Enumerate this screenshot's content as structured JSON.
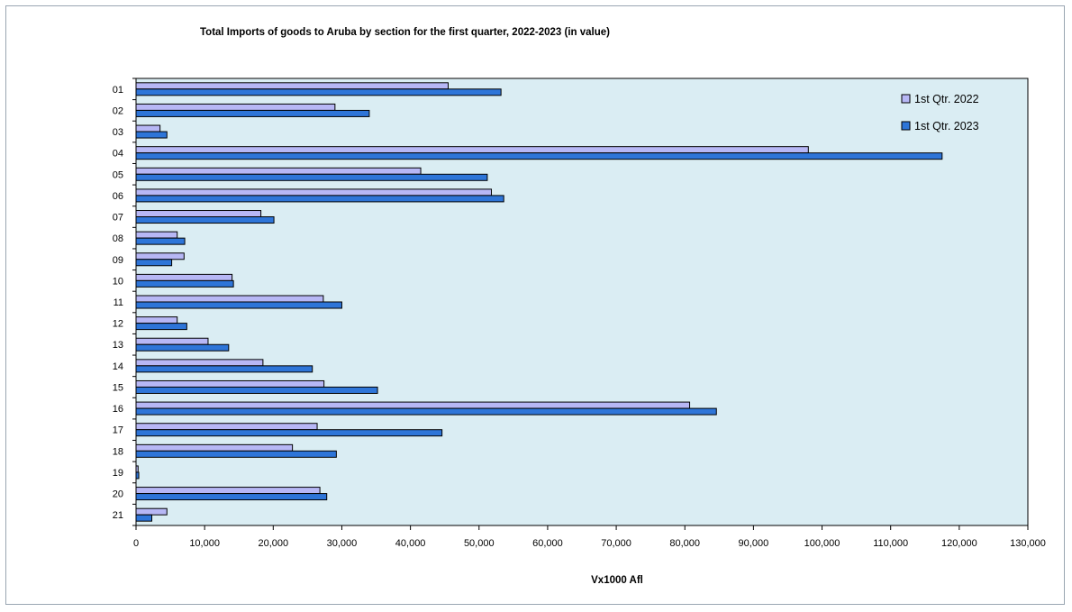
{
  "chart_data": {
    "type": "bar",
    "orientation": "horizontal",
    "title": "Total Imports of goods to Aruba by section for the first quarter, 2022-2023 (in value)",
    "xlabel": "Vx1000 Afl",
    "ylabel": "",
    "categories": [
      "01",
      "02",
      "03",
      "04",
      "05",
      "06",
      "07",
      "08",
      "09",
      "10",
      "11",
      "12",
      "13",
      "14",
      "15",
      "16",
      "17",
      "18",
      "19",
      "20",
      "21"
    ],
    "series": [
      {
        "name": "1st Qtr. 2022",
        "color": "#b7b7f5",
        "values": [
          45500,
          29000,
          3500,
          98000,
          41500,
          51800,
          18200,
          6000,
          7000,
          14000,
          27300,
          6000,
          10500,
          18500,
          27400,
          80700,
          26400,
          22800,
          300,
          26800,
          4500
        ]
      },
      {
        "name": "1st Qtr. 2023",
        "color": "#2e75d8",
        "values": [
          53200,
          34000,
          4500,
          117500,
          51200,
          53600,
          20100,
          7100,
          5200,
          14200,
          30000,
          7400,
          13500,
          25700,
          35200,
          84600,
          44600,
          29200,
          400,
          27800,
          2300
        ]
      }
    ],
    "xlim": [
      0,
      130000
    ],
    "xticks": [
      0,
      10000,
      20000,
      30000,
      40000,
      50000,
      60000,
      70000,
      80000,
      90000,
      100000,
      110000,
      120000,
      130000
    ],
    "xtick_labels": [
      "0",
      "10,000",
      "20,000",
      "30,000",
      "40,000",
      "50,000",
      "60,000",
      "70,000",
      "80,000",
      "90,000",
      "100,000",
      "110,000",
      "120,000",
      "130,000"
    ],
    "grid": false,
    "legend_position": "top-right",
    "plot_background": "#daedf3"
  }
}
